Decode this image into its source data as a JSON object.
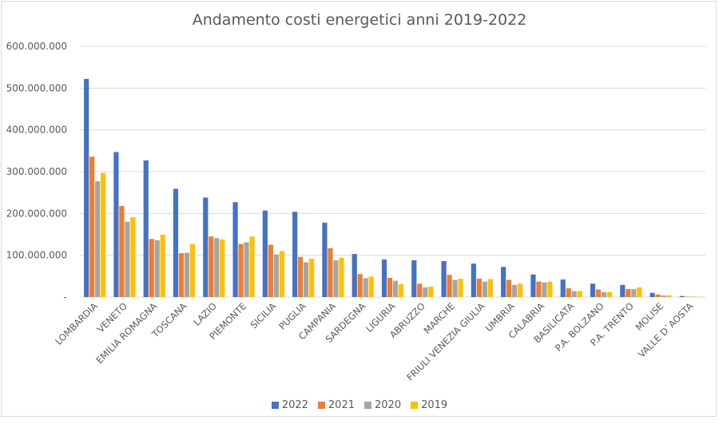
{
  "chart_data": {
    "type": "bar",
    "title": "Andamento costi energetici anni 2019-2022",
    "xlabel": "",
    "ylabel": "",
    "ylim": [
      0,
      600000000
    ],
    "yticks": [
      {
        "value": 0,
        "label": "-"
      },
      {
        "value": 100000000,
        "label": "100.000.000"
      },
      {
        "value": 200000000,
        "label": "200.000.000"
      },
      {
        "value": 300000000,
        "label": "300.000.000"
      },
      {
        "value": 400000000,
        "label": "400.000.000"
      },
      {
        "value": 500000000,
        "label": "500.000.000"
      },
      {
        "value": 600000000,
        "label": "600.000.000"
      }
    ],
    "grid": true,
    "legend_position": "bottom",
    "categories": [
      "LOMBARDIA",
      "VENETO",
      "EMILIA ROMAGNA",
      "TOSCANA",
      "LAZIO",
      "PIEMONTE",
      "SICILIA",
      "PUGLIA",
      "CAMPANIA",
      "SARDEGNA",
      "LIGURIA",
      "ABRUZZO",
      "MARCHE",
      "FRIULI VENEZIA GIULIA",
      "UMBRIA",
      "CALABRIA",
      "BASILICATA",
      "P.A. BOLZANO",
      "P.A. TRENTO",
      "MOLISE",
      "VALLE D`AOSTA"
    ],
    "series": [
      {
        "name": "2022",
        "color": "#4472c4",
        "values": [
          522000000,
          347000000,
          327000000,
          259000000,
          238000000,
          227000000,
          207000000,
          204000000,
          178000000,
          103000000,
          90000000,
          88000000,
          86000000,
          80000000,
          72000000,
          54000000,
          42000000,
          32000000,
          29000000,
          10000000,
          2500000
        ]
      },
      {
        "name": "2021",
        "color": "#ed7d31",
        "values": [
          336000000,
          218000000,
          139000000,
          105000000,
          145000000,
          127000000,
          125000000,
          96000000,
          117000000,
          55000000,
          46000000,
          32000000,
          53000000,
          44000000,
          41000000,
          37000000,
          21000000,
          18000000,
          19000000,
          6000000,
          1000000
        ]
      },
      {
        "name": "2020",
        "color": "#a5a5a5",
        "values": [
          277000000,
          180000000,
          136000000,
          106000000,
          141000000,
          131000000,
          102000000,
          83000000,
          88000000,
          45000000,
          39000000,
          23000000,
          41000000,
          37000000,
          29000000,
          35000000,
          14000000,
          12000000,
          19000000,
          4000000,
          800000
        ]
      },
      {
        "name": "2019",
        "color": "#ffc000",
        "values": [
          297000000,
          191000000,
          149000000,
          127000000,
          138000000,
          145000000,
          110000000,
          92000000,
          94000000,
          49000000,
          31000000,
          25000000,
          44000000,
          43000000,
          32000000,
          37000000,
          14000000,
          12000000,
          23000000,
          4000000,
          800000
        ]
      }
    ]
  }
}
